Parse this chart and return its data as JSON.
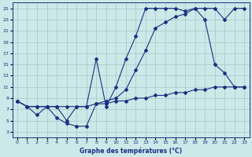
{
  "xlabel": "Graphe des températures (°C)",
  "bg_color": "#cce8e8",
  "grid_color": "#aacccc",
  "line_color": "#1a3080",
  "xlim": [
    -0.5,
    23.5
  ],
  "ylim": [
    2,
    26
  ],
  "xticks": [
    0,
    1,
    2,
    3,
    4,
    5,
    6,
    7,
    8,
    9,
    10,
    11,
    12,
    13,
    14,
    15,
    16,
    17,
    18,
    19,
    20,
    21,
    22,
    23
  ],
  "yticks": [
    3,
    5,
    7,
    9,
    11,
    13,
    15,
    17,
    19,
    21,
    23,
    25
  ],
  "line1_x": [
    0,
    1,
    2,
    3,
    4,
    5,
    6,
    7,
    8,
    9,
    10,
    11,
    12,
    13,
    14,
    15,
    16,
    17,
    18,
    19,
    20,
    21,
    22,
    23
  ],
  "line1_y": [
    8.5,
    7.5,
    6.0,
    7.5,
    5.5,
    4.5,
    4.0,
    4.0,
    8.0,
    8.0,
    8.5,
    8.5,
    9.0,
    9.0,
    9.5,
    9.5,
    10.0,
    10.0,
    10.5,
    10.5,
    11.0,
    11.0,
    11.0,
    11.0
  ],
  "line2_x": [
    0,
    1,
    2,
    3,
    4,
    5,
    6,
    7,
    8,
    9,
    10,
    11,
    12,
    13,
    14,
    15,
    16,
    17,
    18,
    19,
    20,
    21,
    22,
    23
  ],
  "line2_y": [
    8.5,
    7.5,
    7.5,
    7.5,
    7.5,
    5.0,
    7.5,
    7.5,
    16.0,
    7.5,
    11.0,
    16.0,
    20.0,
    25.0,
    25.0,
    25.0,
    25.0,
    24.5,
    25.0,
    23.0,
    15.0,
    13.5,
    11.0,
    11.0
  ],
  "line3_x": [
    0,
    1,
    2,
    3,
    4,
    5,
    6,
    7,
    8,
    9,
    10,
    11,
    12,
    13,
    14,
    15,
    16,
    17,
    18,
    19,
    20,
    21,
    22,
    23
  ],
  "line3_y": [
    8.5,
    7.5,
    7.5,
    7.5,
    7.5,
    7.5,
    7.5,
    7.5,
    8.0,
    8.5,
    9.0,
    10.5,
    14.0,
    17.5,
    21.5,
    22.5,
    23.5,
    24.0,
    25.0,
    25.0,
    25.0,
    23.0,
    25.0,
    25.0
  ]
}
